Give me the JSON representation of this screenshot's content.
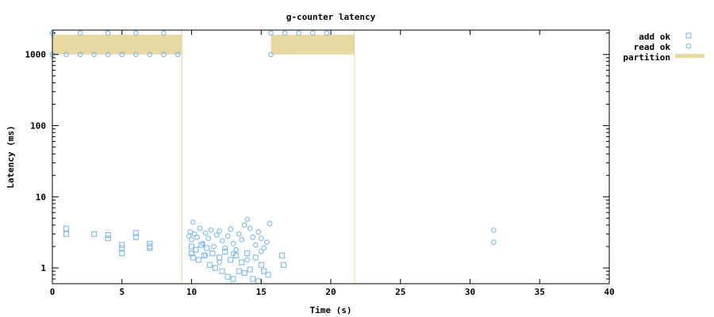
{
  "chart_data": {
    "type": "scatter",
    "title": "g-counter latency",
    "xlabel": "Time (s)",
    "ylabel": "Latency (ms)",
    "xlim": [
      0,
      40
    ],
    "ylim": [
      0.6,
      2200
    ],
    "yscale": "log",
    "x_ticks": [
      "0",
      "5",
      "10",
      "15",
      "20",
      "25",
      "30",
      "35",
      "40"
    ],
    "y_ticks": [
      "1",
      "10",
      "100",
      "1000"
    ],
    "legend_position": "top-right-outside",
    "grid": false,
    "colors": {
      "add": "#6fb3f0",
      "read": "#6fb3f0",
      "partition": "#e8d9a3"
    },
    "series": [
      {
        "name": "add ok",
        "marker": "square",
        "points": [
          [
            1.0,
            3.6
          ],
          [
            1.0,
            3.0
          ],
          [
            3.0,
            3.0
          ],
          [
            4.0,
            2.9
          ],
          [
            4.0,
            2.6
          ],
          [
            5.0,
            2.1
          ],
          [
            5.0,
            1.9
          ],
          [
            5.0,
            1.6
          ],
          [
            6.0,
            3.1
          ],
          [
            6.0,
            2.7
          ],
          [
            7.0,
            2.2
          ],
          [
            7.0,
            2.0
          ],
          [
            7.0,
            1.9
          ],
          [
            10.0,
            2.0
          ],
          [
            10.0,
            1.6
          ],
          [
            10.1,
            1.4
          ],
          [
            10.3,
            1.8
          ],
          [
            10.5,
            1.3
          ],
          [
            10.7,
            2.1
          ],
          [
            10.9,
            1.5
          ],
          [
            11.1,
            1.9
          ],
          [
            11.3,
            1.1
          ],
          [
            11.5,
            1.6
          ],
          [
            11.7,
            1.0
          ],
          [
            12.0,
            1.4
          ],
          [
            12.2,
            0.9
          ],
          [
            12.4,
            1.7
          ],
          [
            12.6,
            0.75
          ],
          [
            12.8,
            1.3
          ],
          [
            13.0,
            0.7
          ],
          [
            13.2,
            1.5
          ],
          [
            13.4,
            0.9
          ],
          [
            13.6,
            1.2
          ],
          [
            13.8,
            0.85
          ],
          [
            14.0,
            1.6
          ],
          [
            14.2,
            0.95
          ],
          [
            14.4,
            0.7
          ],
          [
            14.6,
            1.4
          ],
          [
            14.8,
            0.65
          ],
          [
            15.0,
            1.1
          ],
          [
            15.2,
            0.9
          ],
          [
            15.5,
            0.8
          ],
          [
            16.5,
            1.5
          ],
          [
            16.6,
            1.1
          ]
        ]
      },
      {
        "name": "read ok",
        "marker": "circle",
        "points": [
          [
            0.0,
            2000
          ],
          [
            0.0,
            1000
          ],
          [
            1.0,
            1000
          ],
          [
            2.0,
            2000
          ],
          [
            2.0,
            1000
          ],
          [
            3.0,
            1000
          ],
          [
            4.0,
            2000
          ],
          [
            4.0,
            1000
          ],
          [
            5.0,
            1000
          ],
          [
            6.0,
            2000
          ],
          [
            6.0,
            1000
          ],
          [
            7.0,
            1000
          ],
          [
            8.0,
            2000
          ],
          [
            8.0,
            1000
          ],
          [
            9.0,
            1000
          ],
          [
            15.7,
            2000
          ],
          [
            15.7,
            1000
          ],
          [
            16.7,
            2000
          ],
          [
            17.7,
            2000
          ],
          [
            18.7,
            2000
          ],
          [
            19.7,
            2000
          ],
          [
            9.8,
            2.8
          ],
          [
            9.9,
            3.2
          ],
          [
            10.0,
            2.5
          ],
          [
            10.1,
            4.4
          ],
          [
            10.2,
            3.0
          ],
          [
            10.4,
            2.7
          ],
          [
            10.6,
            3.6
          ],
          [
            10.8,
            2.2
          ],
          [
            11.0,
            3.1
          ],
          [
            11.2,
            2.6
          ],
          [
            11.4,
            3.4
          ],
          [
            11.6,
            2.0
          ],
          [
            11.8,
            2.9
          ],
          [
            12.0,
            3.3
          ],
          [
            12.2,
            2.4
          ],
          [
            12.4,
            1.9
          ],
          [
            12.6,
            2.8
          ],
          [
            12.8,
            3.5
          ],
          [
            13.0,
            2.2
          ],
          [
            13.2,
            1.8
          ],
          [
            13.4,
            3.0
          ],
          [
            13.6,
            2.5
          ],
          [
            13.8,
            4.0
          ],
          [
            14.0,
            4.8
          ],
          [
            14.2,
            3.6
          ],
          [
            14.4,
            2.7
          ],
          [
            14.6,
            2.1
          ],
          [
            14.8,
            3.2
          ],
          [
            15.0,
            2.6
          ],
          [
            15.2,
            1.9
          ],
          [
            15.4,
            2.3
          ],
          [
            15.6,
            4.2
          ],
          [
            11.0,
            1.5
          ],
          [
            12.0,
            1.2
          ],
          [
            13.0,
            1.6
          ],
          [
            14.0,
            1.3
          ],
          [
            15.0,
            1.7
          ],
          [
            31.7,
            3.4
          ],
          [
            31.7,
            2.3
          ]
        ]
      },
      {
        "name": "partition",
        "type": "interval",
        "intervals": [
          [
            0.0,
            9.3
          ],
          [
            15.7,
            21.7
          ]
        ]
      }
    ]
  }
}
